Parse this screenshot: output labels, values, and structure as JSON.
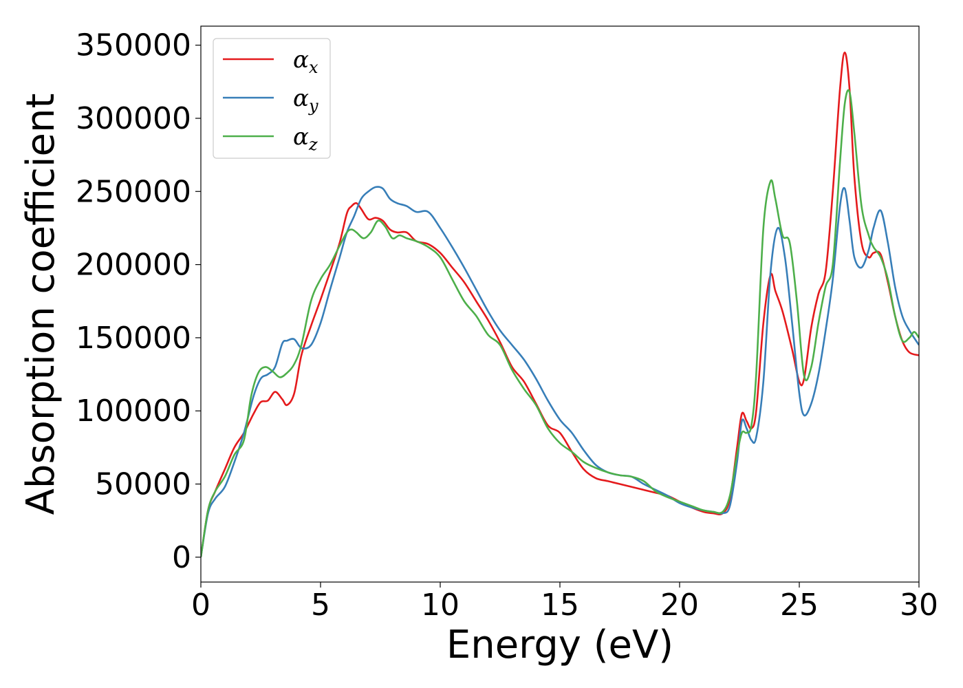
{
  "chart_data": {
    "type": "line",
    "title": "",
    "xlabel": "Energy (eV)",
    "ylabel": "Absorption coefficient",
    "xlim": [
      0,
      30
    ],
    "ylim": [
      -17000,
      363000
    ],
    "xticks": [
      0,
      5,
      10,
      15,
      20,
      25,
      30
    ],
    "yticks": [
      0,
      50000,
      100000,
      150000,
      200000,
      250000,
      300000,
      350000
    ],
    "grid": false,
    "legend_position": "top-left",
    "series": [
      {
        "name": "α_x",
        "label_main": "α",
        "label_sub": "x",
        "color": "#e41a1c",
        "x": [
          0,
          0.3,
          0.6,
          1.0,
          1.4,
          1.8,
          2.2,
          2.5,
          2.8,
          3.1,
          3.4,
          3.6,
          3.9,
          4.2,
          4.6,
          5.0,
          5.4,
          5.8,
          6.1,
          6.3,
          6.5,
          6.7,
          7.0,
          7.3,
          7.6,
          7.9,
          8.2,
          8.6,
          9.0,
          9.5,
          10.0,
          10.5,
          11.0,
          11.5,
          12.0,
          12.5,
          13.0,
          13.5,
          14.0,
          14.5,
          15.0,
          15.5,
          16.0,
          16.5,
          17.0,
          17.5,
          18.0,
          18.5,
          19.0,
          19.5,
          20.0,
          20.5,
          21.0,
          21.4,
          21.8,
          22.1,
          22.4,
          22.6,
          22.8,
          23.0,
          23.2,
          23.5,
          23.8,
          24.0,
          24.3,
          24.7,
          25.0,
          25.2,
          25.5,
          25.8,
          26.1,
          26.4,
          26.7,
          26.9,
          27.1,
          27.3,
          27.6,
          27.9,
          28.1,
          28.4,
          28.7,
          29.0,
          29.3,
          29.6,
          30.0
        ],
        "y": [
          0,
          32000,
          45000,
          60000,
          75000,
          85000,
          98000,
          106000,
          107000,
          113000,
          108000,
          104000,
          112000,
          138000,
          158000,
          176000,
          195000,
          215000,
          235000,
          240000,
          242000,
          238000,
          231000,
          232000,
          230000,
          224000,
          222000,
          222000,
          216000,
          214000,
          208000,
          198000,
          188000,
          175000,
          162000,
          147000,
          130000,
          120000,
          105000,
          90000,
          85000,
          72000,
          60000,
          54000,
          52000,
          50000,
          48000,
          46000,
          44000,
          42000,
          38000,
          34000,
          31000,
          30000,
          30000,
          40000,
          75000,
          98000,
          93000,
          88000,
          100000,
          160000,
          193000,
          182000,
          168000,
          142000,
          120000,
          122000,
          157000,
          180000,
          195000,
          250000,
          320000,
          345000,
          320000,
          260000,
          215000,
          205000,
          208000,
          207000,
          188000,
          165000,
          148000,
          140000,
          138000
        ]
      },
      {
        "name": "α_y",
        "label_main": "α",
        "label_sub": "y",
        "color": "#377eb8",
        "x": [
          0,
          0.3,
          0.6,
          1.0,
          1.4,
          1.8,
          2.2,
          2.5,
          2.8,
          3.1,
          3.4,
          3.6,
          3.9,
          4.2,
          4.6,
          5.0,
          5.4,
          5.8,
          6.1,
          6.4,
          6.7,
          7.0,
          7.3,
          7.6,
          7.9,
          8.2,
          8.6,
          9.0,
          9.5,
          10.0,
          10.5,
          11.0,
          11.5,
          12.0,
          12.5,
          13.0,
          13.5,
          14.0,
          14.5,
          15.0,
          15.5,
          16.0,
          16.5,
          17.0,
          17.5,
          18.0,
          18.5,
          19.0,
          19.5,
          20.0,
          20.5,
          21.0,
          21.4,
          21.8,
          22.1,
          22.4,
          22.6,
          22.8,
          23.0,
          23.2,
          23.5,
          23.8,
          24.1,
          24.4,
          24.7,
          25.0,
          25.2,
          25.5,
          25.8,
          26.1,
          26.4,
          26.7,
          26.9,
          27.1,
          27.3,
          27.6,
          27.9,
          28.1,
          28.4,
          28.7,
          29.0,
          29.3,
          29.6,
          30.0
        ],
        "y": [
          0,
          30000,
          40000,
          48000,
          65000,
          85000,
          110000,
          122000,
          125000,
          130000,
          146000,
          148000,
          149000,
          143000,
          145000,
          160000,
          183000,
          205000,
          222000,
          233000,
          245000,
          250000,
          253000,
          252000,
          245000,
          242000,
          240000,
          236000,
          236000,
          225000,
          212000,
          198000,
          183000,
          168000,
          155000,
          145000,
          135000,
          122000,
          107000,
          94000,
          85000,
          73000,
          63000,
          58000,
          56000,
          55000,
          50000,
          46000,
          42000,
          37000,
          34000,
          32000,
          31000,
          30000,
          35000,
          65000,
          93000,
          88000,
          80000,
          82000,
          120000,
          195000,
          225000,
          205000,
          160000,
          112000,
          97000,
          105000,
          125000,
          155000,
          190000,
          240000,
          252000,
          230000,
          205000,
          198000,
          210000,
          225000,
          237000,
          215000,
          185000,
          165000,
          155000,
          145000
        ]
      },
      {
        "name": "α_z",
        "label_main": "α",
        "label_sub": "z",
        "color": "#4daf4a",
        "x": [
          0,
          0.3,
          0.6,
          1.0,
          1.4,
          1.8,
          2.1,
          2.4,
          2.7,
          3.0,
          3.3,
          3.6,
          3.9,
          4.2,
          4.6,
          5.0,
          5.4,
          5.8,
          6.1,
          6.3,
          6.5,
          6.8,
          7.1,
          7.4,
          7.7,
          8.0,
          8.3,
          8.6,
          9.0,
          9.5,
          10.0,
          10.5,
          11.0,
          11.5,
          12.0,
          12.5,
          13.0,
          13.5,
          14.0,
          14.5,
          15.0,
          15.5,
          16.0,
          16.5,
          17.0,
          17.5,
          18.0,
          18.5,
          19.0,
          19.5,
          20.0,
          20.5,
          21.0,
          21.4,
          21.8,
          22.1,
          22.4,
          22.6,
          22.8,
          23.0,
          23.2,
          23.5,
          23.8,
          24.0,
          24.3,
          24.6,
          24.9,
          25.2,
          25.5,
          25.8,
          26.1,
          26.4,
          26.7,
          26.9,
          27.1,
          27.3,
          27.6,
          27.9,
          28.1,
          28.4,
          28.7,
          29.0,
          29.3,
          29.6,
          29.8,
          30.0
        ],
        "y": [
          0,
          32000,
          45000,
          55000,
          70000,
          80000,
          110000,
          126000,
          130000,
          127000,
          123000,
          126000,
          132000,
          145000,
          175000,
          190000,
          200000,
          213000,
          222000,
          224000,
          222000,
          218000,
          222000,
          230000,
          226000,
          218000,
          220000,
          218000,
          216000,
          212000,
          205000,
          190000,
          175000,
          165000,
          152000,
          145000,
          128000,
          115000,
          104000,
          88000,
          78000,
          72000,
          65000,
          61000,
          58000,
          56000,
          55000,
          52000,
          45000,
          41000,
          38000,
          35000,
          32000,
          31000,
          31000,
          42000,
          70000,
          85000,
          85000,
          90000,
          125000,
          225000,
          257000,
          245000,
          220000,
          215000,
          175000,
          124000,
          130000,
          160000,
          185000,
          200000,
          270000,
          310000,
          318000,
          290000,
          240000,
          220000,
          212000,
          205000,
          190000,
          165000,
          148000,
          150000,
          154000,
          150000
        ]
      }
    ]
  }
}
